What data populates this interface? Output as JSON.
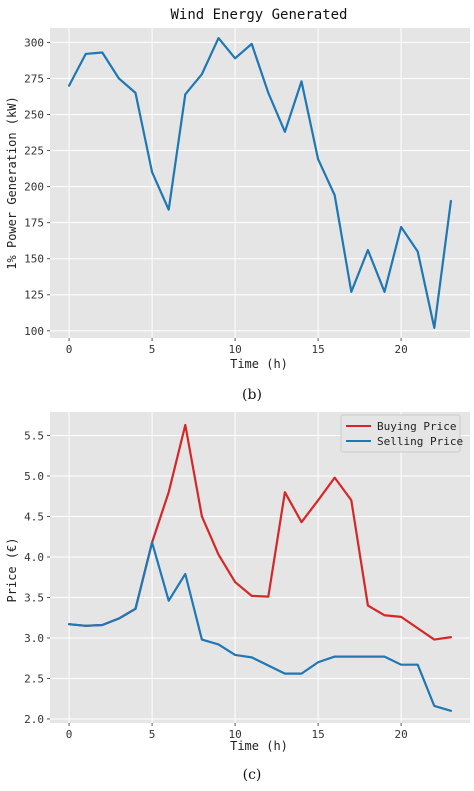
{
  "chart_data": [
    {
      "type": "line",
      "title": "Wind Energy Generated",
      "xlabel": "Time (h)",
      "ylabel": "1% Power Generation (kW)",
      "caption": "(b)",
      "xlim": [
        -1.15,
        24.15
      ],
      "ylim": [
        95,
        310
      ],
      "xticks": [
        0,
        5,
        10,
        15,
        20
      ],
      "yticks": [
        100,
        125,
        150,
        175,
        200,
        225,
        250,
        275,
        300
      ],
      "ytick_labels": [
        "100",
        "125",
        "150",
        "175",
        "200",
        "225",
        "250",
        "275",
        "300"
      ],
      "grid": true,
      "legend": false,
      "x": [
        0,
        1,
        2,
        3,
        4,
        5,
        6,
        7,
        8,
        9,
        10,
        11,
        12,
        13,
        14,
        15,
        16,
        17,
        18,
        19,
        20,
        21,
        22,
        23
      ],
      "series": [
        {
          "color": "#1f77b4",
          "values": [
            270,
            292,
            293,
            275,
            265,
            210,
            184,
            264,
            278,
            303,
            289,
            299,
            265,
            238,
            273,
            219,
            194,
            127,
            156,
            127,
            172,
            155,
            102,
            190
          ]
        }
      ]
    },
    {
      "type": "line",
      "title": "",
      "xlabel": "Time (h)",
      "ylabel": "Price (€)",
      "caption": "(c)",
      "xlim": [
        -1.15,
        24.15
      ],
      "ylim": [
        1.95,
        5.79
      ],
      "xticks": [
        0,
        5,
        10,
        15,
        20
      ],
      "yticks": [
        2.0,
        2.5,
        3.0,
        3.5,
        4.0,
        4.5,
        5.0,
        5.5
      ],
      "ytick_labels": [
        "2.0",
        "2.5",
        "3.0",
        "3.5",
        "4.0",
        "4.5",
        "5.0",
        "5.5"
      ],
      "grid": true,
      "legend": "top-right",
      "x": [
        0,
        1,
        2,
        3,
        4,
        5,
        6,
        7,
        8,
        9,
        10,
        11,
        12,
        13,
        14,
        15,
        16,
        17,
        18,
        19,
        20,
        21,
        22,
        23
      ],
      "series": [
        {
          "name": "Buying Price",
          "color": "#d62728",
          "values": [
            3.17,
            3.15,
            3.16,
            3.24,
            3.36,
            4.18,
            4.8,
            5.63,
            4.5,
            4.03,
            3.69,
            3.52,
            3.51,
            4.8,
            4.43,
            4.7,
            4.98,
            4.7,
            3.4,
            3.28,
            3.26,
            3.12,
            2.98,
            3.01
          ]
        },
        {
          "name": "Selling Price",
          "color": "#1f77b4",
          "values": [
            3.17,
            3.15,
            3.16,
            3.24,
            3.36,
            4.18,
            3.46,
            3.79,
            2.98,
            2.92,
            2.79,
            2.76,
            2.66,
            2.56,
            2.56,
            2.7,
            2.77,
            2.77,
            2.77,
            2.77,
            2.67,
            2.67,
            2.16,
            2.1
          ]
        }
      ]
    }
  ]
}
